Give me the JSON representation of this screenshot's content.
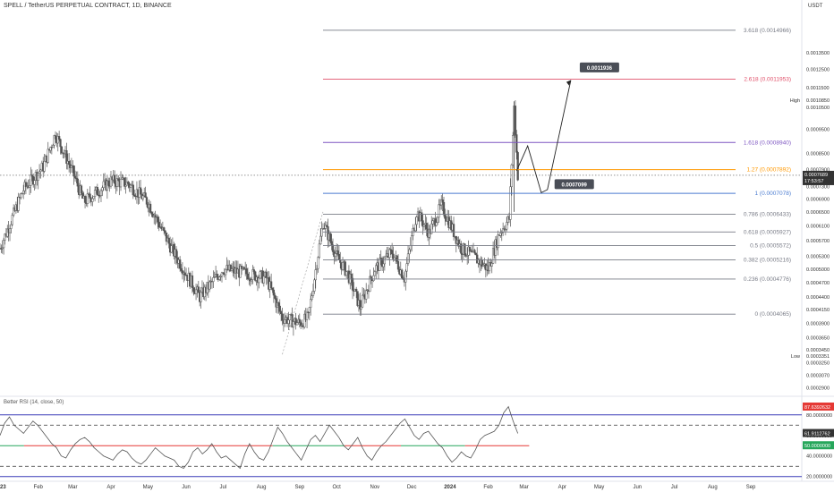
{
  "header": {
    "title": "SPELL / TetherUS PERPETUAL CONTRACT, 1D, BINANCE",
    "unit": "USDT"
  },
  "rsi": {
    "title": "Better RSI (14, close, 50)"
  },
  "colors": {
    "background": "#ffffff",
    "candle": "#555555",
    "fib_2618": "#e0506a",
    "fib_1618": "#7e57c2",
    "fib_127": "#ff9800",
    "fib_1": "#4a7bd0",
    "fib_gray": "#787b86",
    "rsi_line": "#555555",
    "rsi_upper_band": "#3a3cb8",
    "rsi_mid_green": "#26a65b",
    "rsi_mid_red": "#e53935"
  },
  "chart_data": {
    "type": "candlestick",
    "symbol": "SPELL / TetherUS PERPETUAL CONTRACT",
    "timeframe": "1D",
    "exchange": "BINANCE",
    "price_axis": {
      "scale": "log",
      "range": [
        0.00028,
        0.00165
      ],
      "ticks": [
        "0.0013500",
        "0.0012500",
        "0.0011500",
        "0.0010500",
        "0.0009500",
        "0.0008500",
        "0.0007900",
        "0.0007300",
        "0.0006900",
        "0.0006500",
        "0.0006100",
        "0.0005700",
        "0.0005300",
        "0.0005000",
        "0.0004700",
        "0.0004400",
        "0.0004150",
        "0.0003900",
        "0.0003650",
        "0.0003450",
        "0.0003250",
        "0.0003070",
        "0.0002900"
      ]
    },
    "time_axis": {
      "ticks": [
        "2023",
        "Feb",
        "Mar",
        "Apr",
        "May",
        "Jun",
        "Jul",
        "Aug",
        "Sep",
        "Oct",
        "Nov",
        "Dec",
        "2024",
        "Feb",
        "Mar",
        "Apr",
        "May",
        "Jun",
        "Jul",
        "Aug",
        "Sep"
      ]
    },
    "price_series_approx": [
      {
        "date": "2023-01-01",
        "close": 0.00055
      },
      {
        "date": "2023-01-20",
        "close": 0.00072
      },
      {
        "date": "2023-02-05",
        "close": 0.0008
      },
      {
        "date": "2023-02-15",
        "close": 0.00093
      },
      {
        "date": "2023-03-01",
        "close": 0.00078
      },
      {
        "date": "2023-03-10",
        "close": 0.00068
      },
      {
        "date": "2023-04-01",
        "close": 0.00075
      },
      {
        "date": "2023-04-15",
        "close": 0.00074
      },
      {
        "date": "2023-05-01",
        "close": 0.00068
      },
      {
        "date": "2023-05-20",
        "close": 0.00055
      },
      {
        "date": "2023-06-12",
        "close": 0.00044
      },
      {
        "date": "2023-07-01",
        "close": 0.0005
      },
      {
        "date": "2023-07-20",
        "close": 0.00049
      },
      {
        "date": "2023-08-05",
        "close": 0.00048
      },
      {
        "date": "2023-08-18",
        "close": 0.0004
      },
      {
        "date": "2023-09-01",
        "close": 0.00039
      },
      {
        "date": "2023-09-08",
        "close": 0.0004
      },
      {
        "date": "2023-09-20",
        "close": 0.00062
      },
      {
        "date": "2023-10-01",
        "close": 0.00053
      },
      {
        "date": "2023-10-10",
        "close": 0.00049
      },
      {
        "date": "2023-10-20",
        "close": 0.00042
      },
      {
        "date": "2023-11-01",
        "close": 0.0005
      },
      {
        "date": "2023-11-15",
        "close": 0.00054
      },
      {
        "date": "2023-11-25",
        "close": 0.00048
      },
      {
        "date": "2023-12-05",
        "close": 0.00065
      },
      {
        "date": "2023-12-15",
        "close": 0.00059
      },
      {
        "date": "2023-12-25",
        "close": 0.00067
      },
      {
        "date": "2024-01-10",
        "close": 0.00055
      },
      {
        "date": "2024-01-20",
        "close": 0.00053
      },
      {
        "date": "2024-02-01",
        "close": 0.0005
      },
      {
        "date": "2024-02-10",
        "close": 0.00059
      },
      {
        "date": "2024-02-18",
        "close": 0.00063
      },
      {
        "date": "2024-02-22",
        "close": 0.00105
      },
      {
        "date": "2024-02-25",
        "close": 0.00076896
      }
    ],
    "current_price": {
      "label": "0.0007689",
      "countdown": "17:53:57"
    },
    "high_low_labels": {
      "high_label": "High",
      "high_value": "0.0010850",
      "low_label": "Low",
      "low_value": "0.0003351"
    },
    "fib_levels": [
      {
        "ratio": "3.618",
        "label": "3.618 (0.0014966)",
        "price": 0.0014966,
        "color": "#787b86"
      },
      {
        "ratio": "2.618",
        "label": "2.618 (0.0011953)",
        "price": 0.0011953,
        "color": "#e0506a"
      },
      {
        "ratio": "1.618",
        "label": "1.618 (0.0008940)",
        "price": 0.000894,
        "color": "#7e57c2"
      },
      {
        "ratio": "1.27",
        "label": "1.27 (0.0007892)",
        "price": 0.0007892,
        "color": "#ff9800"
      },
      {
        "ratio": "1",
        "label": "1 (0.0007078)",
        "price": 0.0007078,
        "color": "#4a7bd0"
      },
      {
        "ratio": "0.786",
        "label": "0.786 (0.0006433)",
        "price": 0.0006433,
        "color": "#787b86"
      },
      {
        "ratio": "0.618",
        "label": "0.618 (0.0005927)",
        "price": 0.0005927,
        "color": "#787b86"
      },
      {
        "ratio": "0.5",
        "label": "0.5 (0.0005572)",
        "price": 0.0005572,
        "color": "#787b86"
      },
      {
        "ratio": "0.382",
        "label": "0.382 (0.0005216)",
        "price": 0.0005216,
        "color": "#787b86"
      },
      {
        "ratio": "0.236",
        "label": "0.236 (0.0004776)",
        "price": 0.0004776,
        "color": "#787b86"
      },
      {
        "ratio": "0",
        "label": "0 (0.0004065)",
        "price": 0.0004065,
        "color": "#787b86"
      }
    ],
    "projection_path": [
      {
        "date": "2024-02-24",
        "price": 0.000785
      },
      {
        "date": "2024-03-04",
        "price": 0.00088
      },
      {
        "date": "2024-03-15",
        "price": 0.00071
      },
      {
        "date": "2024-03-20",
        "price": 0.00072
      },
      {
        "date": "2024-04-08",
        "price": 0.00119
      }
    ],
    "projection_labels": [
      {
        "text": "0.0011936",
        "date": "2024-04-08",
        "price": 0.0011936
      },
      {
        "text": "0.0007099",
        "date": "2024-03-20",
        "price": 0.0007099
      }
    ],
    "rsi": {
      "axis_ticks": [
        "80.0000000",
        "60.0000000",
        "40.0000000",
        "20.0000000"
      ],
      "range": [
        18,
        92
      ],
      "last_labels": [
        "87.6392632",
        "61.9112762",
        "50.0000000"
      ],
      "upper_band": 80,
      "overbought_dash": 70,
      "mid": 50,
      "oversold_dash": 30,
      "values_approx": [
        60,
        72,
        78,
        70,
        66,
        62,
        68,
        74,
        70,
        64,
        58,
        52,
        48,
        40,
        38,
        46,
        52,
        56,
        58,
        54,
        48,
        44,
        40,
        38,
        36,
        42,
        46,
        44,
        38,
        34,
        32,
        36,
        42,
        48,
        44,
        40,
        38,
        36,
        30,
        28,
        34,
        44,
        48,
        42,
        46,
        52,
        44,
        38,
        40,
        36,
        32,
        28,
        42,
        52,
        44,
        38,
        36,
        44,
        56,
        68,
        62,
        54,
        48,
        42,
        36,
        46,
        56,
        60,
        54,
        62,
        70,
        64,
        58,
        50,
        46,
        52,
        58,
        48,
        40,
        36,
        44,
        50,
        54,
        60,
        66,
        72,
        76,
        68,
        60,
        56,
        62,
        64,
        58,
        52,
        48,
        40,
        34,
        38,
        44,
        40,
        38,
        46,
        56,
        60,
        62,
        64,
        70,
        82,
        88,
        74,
        62
      ]
    }
  }
}
